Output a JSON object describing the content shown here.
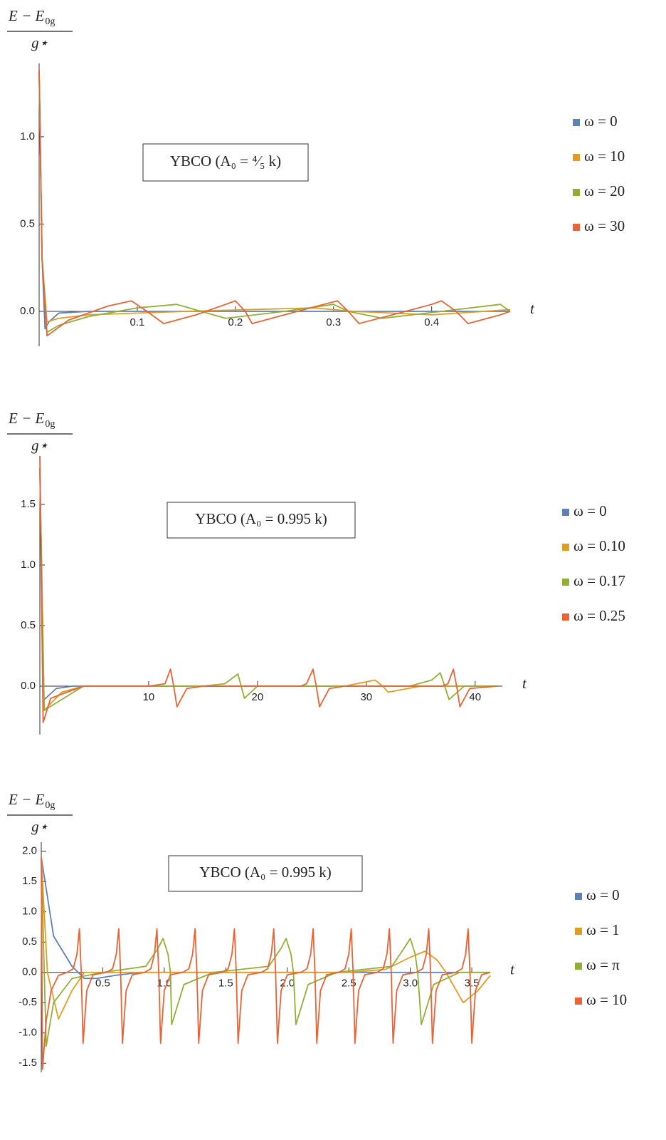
{
  "chart_data": [
    {
      "type": "line",
      "ylabel": {
        "numerator": "E − E",
        "subscript": "0g",
        "denominator": "g⋆"
      },
      "xlabel": "t",
      "annotation": "YBCO  (A₀ = ⁴⁄₅ k)",
      "xlim": [
        0,
        0.48
      ],
      "ylim": [
        -0.2,
        1.42
      ],
      "xticks": [
        0.1,
        0.2,
        0.3,
        0.4
      ],
      "yticks": [
        {
          "value": 0,
          "label": "0.0"
        },
        0.5,
        {
          "value": 1,
          "label": "1.0"
        }
      ],
      "grid": false,
      "legend": "right",
      "series": [
        {
          "name": "ω = 0",
          "color": "#5e81b5",
          "x": [
            0,
            0.003,
            0.006,
            0.01,
            0.02,
            0.05,
            0.48
          ],
          "values": [
            1.38,
            0.3,
            -0.1,
            -0.06,
            -0.01,
            0,
            0
          ]
        },
        {
          "name": "ω = 10",
          "color": "#e19c24",
          "x": [
            0,
            0.003,
            0.008,
            0.02,
            0.05,
            0.15,
            0.28,
            0.32,
            0.4,
            0.48
          ],
          "values": [
            1.38,
            0.3,
            -0.06,
            -0.04,
            -0.02,
            0,
            0.02,
            0,
            -0.02,
            0.01
          ]
        },
        {
          "name": "ω = 20",
          "color": "#8fb032",
          "x": [
            0,
            0.003,
            0.008,
            0.02,
            0.05,
            0.1,
            0.14,
            0.165,
            0.19,
            0.25,
            0.3,
            0.315,
            0.35,
            0.41,
            0.47,
            0.48
          ],
          "values": [
            1.38,
            0.3,
            -0.12,
            -0.08,
            -0.03,
            0.02,
            0.04,
            0,
            -0.04,
            0,
            0.04,
            0,
            -0.04,
            0,
            0.04,
            0
          ]
        },
        {
          "name": "ω = 30",
          "color": "#eb6235",
          "x": [
            0,
            0.003,
            0.008,
            0.03,
            0.07,
            0.094,
            0.11,
            0.127,
            0.16,
            0.19,
            0.2,
            0.21,
            0.217,
            0.25,
            0.29,
            0.304,
            0.315,
            0.326,
            0.36,
            0.4,
            0.41,
            0.425,
            0.437,
            0.47,
            0.48
          ],
          "values": [
            1.38,
            0.3,
            -0.14,
            -0.05,
            0.03,
            0.06,
            0,
            -0.07,
            -0.02,
            0.04,
            0.06,
            0,
            -0.07,
            -0.02,
            0.04,
            0.06,
            0,
            -0.07,
            -0.02,
            0.04,
            0.06,
            0,
            -0.07,
            -0.02,
            0
          ]
        }
      ]
    },
    {
      "type": "line",
      "ylabel": {
        "numerator": "E − E",
        "subscript": "0g",
        "denominator": "g⋆"
      },
      "xlabel": "t",
      "annotation": "YBCO  (A₀ = 0.995 k)",
      "xlim": [
        0,
        42.5
      ],
      "ylim": [
        -0.4,
        1.9
      ],
      "xticks": [
        10,
        20,
        30,
        40
      ],
      "yticks": [
        {
          "value": 0,
          "label": "0.0"
        },
        0.5,
        {
          "value": 1,
          "label": "1.0"
        },
        1.5
      ],
      "grid": false,
      "legend": "right",
      "series": [
        {
          "name": "ω = 0",
          "color": "#5e81b5",
          "x": [
            0,
            0.3,
            1.5,
            3,
            42
          ],
          "values": [
            1.8,
            -0.12,
            -0.02,
            0,
            0
          ]
        },
        {
          "name": "ω = 0.10",
          "color": "#e19c24",
          "x": [
            0,
            0.4,
            2,
            4,
            28,
            30.8,
            31.5,
            32,
            35,
            42
          ],
          "values": [
            1.8,
            -0.2,
            -0.05,
            0,
            0,
            0.05,
            0,
            -0.05,
            0,
            0
          ]
        },
        {
          "name": "ω = 0.17",
          "color": "#8fb032",
          "x": [
            0,
            0.4,
            4,
            15,
            17,
            18.2,
            18.5,
            18.8,
            20,
            34,
            36,
            36.8,
            37.2,
            37.6,
            39,
            42
          ],
          "values": [
            1.8,
            -0.2,
            0,
            0,
            0.02,
            0.1,
            0,
            -0.1,
            0,
            0,
            0.05,
            0.11,
            0,
            -0.11,
            0,
            0
          ]
        },
        {
          "name": "ω = 0.25",
          "color": "#eb6235",
          "x": [
            0,
            0.3,
            1,
            4,
            10,
            11.5,
            12,
            12.3,
            12.6,
            13.5,
            15,
            24,
            24.5,
            25.1,
            25.4,
            25.7,
            26.6,
            28,
            37,
            37.5,
            38,
            38.3,
            38.6,
            39.5,
            42
          ],
          "values": [
            1.9,
            -0.3,
            -0.1,
            0,
            0,
            0.02,
            0.14,
            0,
            -0.17,
            -0.02,
            0,
            0,
            0.02,
            0.14,
            0,
            -0.17,
            -0.02,
            0,
            0,
            0.02,
            0.14,
            0,
            -0.17,
            -0.02,
            0
          ]
        }
      ]
    },
    {
      "type": "line",
      "ylabel": {
        "numerator": "E − E",
        "subscript": "0g",
        "denominator": "g⋆"
      },
      "xlabel": "t",
      "annotation": "YBCO  (A₀ = 0.995 k)",
      "xlim": [
        0,
        3.65
      ],
      "ylim": [
        -1.65,
        2.15
      ],
      "xticks": [
        0.5,
        {
          "value": 1,
          "label": "1.0"
        },
        1.5,
        {
          "value": 2,
          "label": "2.0"
        },
        2.5,
        {
          "value": 3,
          "label": "3.0"
        },
        3.5
      ],
      "yticks": [
        -1.5,
        {
          "value": -1,
          "label": "-1.0"
        },
        -0.5,
        {
          "value": 0,
          "label": "0.0"
        },
        0.5,
        {
          "value": 1,
          "label": "1.0"
        },
        1.5,
        {
          "value": 2,
          "label": "2.0"
        }
      ],
      "grid": false,
      "legend": "right",
      "series": [
        {
          "name": "ω = 0",
          "color": "#5e81b5",
          "x": [
            0,
            0.1,
            0.25,
            0.35,
            0.45,
            0.6,
            0.8,
            3.65
          ],
          "values": [
            1.9,
            0.6,
            0.1,
            -0.1,
            -0.1,
            -0.05,
            0,
            0
          ]
        },
        {
          "name": "ω = 1",
          "color": "#e19c24",
          "x": [
            0,
            0.05,
            0.14,
            0.25,
            0.35,
            2.5,
            2.8,
            3.0,
            3.12,
            3.22,
            3.29,
            3.43,
            3.55,
            3.65
          ],
          "values": [
            1.9,
            0,
            -0.77,
            -0.3,
            0,
            0,
            0.05,
            0.25,
            0.35,
            0.2,
            0,
            -0.5,
            -0.3,
            -0.05
          ]
        },
        {
          "name": "ω = π",
          "color": "#8fb032",
          "x": [
            0,
            0.04,
            0.1,
            0.25,
            0.5,
            0.85,
            0.95,
            0.99,
            1.03,
            1.05,
            1.06,
            1.16,
            1.4,
            1.85,
            1.95,
            1.99,
            2.03,
            2.05,
            2.07,
            2.17,
            2.4,
            2.85,
            2.95,
            3.0,
            3.04,
            3.06,
            3.09,
            3.19,
            3.4,
            3.65
          ],
          "values": [
            1.9,
            -1.22,
            -0.5,
            -0.1,
            0,
            0.1,
            0.4,
            0.56,
            0.3,
            0,
            -0.86,
            -0.2,
            0,
            0.1,
            0.4,
            0.56,
            0.3,
            0,
            -0.86,
            -0.2,
            0,
            0.1,
            0.4,
            0.56,
            0.3,
            0,
            -0.86,
            -0.2,
            0,
            0
          ]
        },
        {
          "name": "ω = 10",
          "color": "#eb6235",
          "x": [
            0,
            0.01,
            0.04,
            0.08,
            0.14,
            0.21,
            0.26,
            0.29,
            0.31,
            0.325,
            0.34,
            0.37,
            0.42,
            0.53,
            0.58,
            0.61,
            0.63,
            0.645,
            0.66,
            0.69,
            0.74,
            0.84,
            0.89,
            0.92,
            0.94,
            0.955,
            0.97,
            1.0,
            1.05,
            1.15,
            1.2,
            1.23,
            1.25,
            1.265,
            1.28,
            1.31,
            1.36,
            1.47,
            1.52,
            1.55,
            1.57,
            1.585,
            1.6,
            1.63,
            1.68,
            1.79,
            1.84,
            1.87,
            1.89,
            1.905,
            1.92,
            1.95,
            2.0,
            2.11,
            2.16,
            2.19,
            2.21,
            2.225,
            2.24,
            2.27,
            2.32,
            2.42,
            2.47,
            2.5,
            2.52,
            2.535,
            2.55,
            2.58,
            2.63,
            2.73,
            2.78,
            2.81,
            2.83,
            2.845,
            2.86,
            2.89,
            2.94,
            3.05,
            3.1,
            3.13,
            3.15,
            3.165,
            3.18,
            3.21,
            3.26,
            3.37,
            3.42,
            3.45,
            3.47,
            3.485,
            3.5,
            3.53,
            3.58,
            3.65
          ],
          "values": [
            1.9,
            -1.6,
            -0.8,
            -0.3,
            -0.05,
            0,
            0.06,
            0.3,
            0.72,
            0,
            -1.17,
            -0.3,
            -0.04,
            0,
            0.06,
            0.3,
            0.72,
            0,
            -1.17,
            -0.3,
            -0.04,
            0,
            0.06,
            0.3,
            0.72,
            0,
            -1.17,
            -0.3,
            -0.04,
            0,
            0.06,
            0.3,
            0.72,
            0,
            -1.17,
            -0.3,
            -0.04,
            0,
            0.06,
            0.3,
            0.72,
            0,
            -1.17,
            -0.3,
            -0.04,
            0,
            0.06,
            0.3,
            0.72,
            0,
            -1.17,
            -0.3,
            -0.04,
            0,
            0.06,
            0.3,
            0.72,
            0,
            -1.17,
            -0.3,
            -0.04,
            0,
            0.06,
            0.3,
            0.72,
            0,
            -1.17,
            -0.3,
            -0.04,
            0,
            0.06,
            0.3,
            0.72,
            0,
            -1.17,
            -0.3,
            -0.04,
            0,
            0.06,
            0.3,
            0.72,
            0,
            -1.17,
            -0.3,
            -0.04,
            0,
            0.06,
            0.3,
            0.72,
            0,
            -1.17,
            -0.3,
            -0.04,
            0
          ]
        }
      ]
    }
  ]
}
